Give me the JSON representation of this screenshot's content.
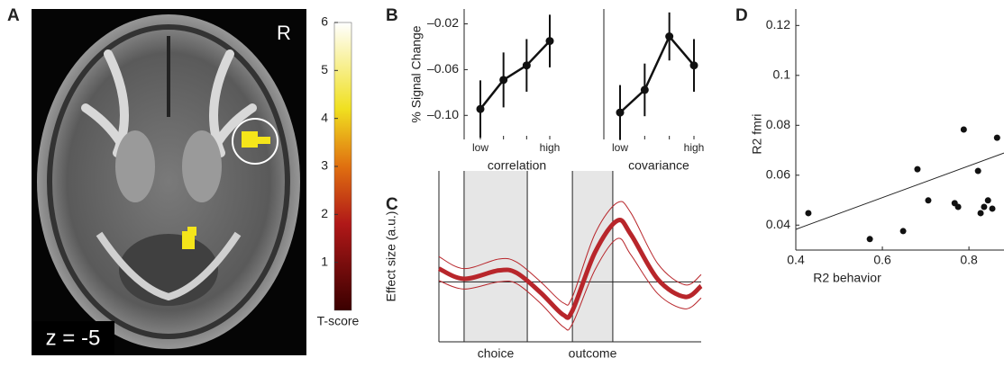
{
  "panel_labels": [
    "A",
    "B",
    "C",
    "D"
  ],
  "brain": {
    "orientation": "R",
    "slice": "z = -5",
    "colorbar": {
      "ylim": [
        0,
        6
      ],
      "yticks": [
        1,
        2,
        3,
        4,
        5,
        6
      ],
      "label": "T-score"
    }
  },
  "chart_data": [
    {
      "type": "errorline",
      "ylabel": "% Signal Change",
      "xlabel": "correlation",
      "categories": [
        "low",
        null,
        null,
        "high"
      ],
      "values": [
        -0.0944,
        -0.069,
        -0.0563,
        -0.035
      ],
      "errors": [
        0.025,
        0.024,
        0.023,
        0.023
      ],
      "ylim": [
        -0.121,
        -0.007
      ],
      "yticks": [
        {
          "value": -0.02,
          "label": "–0.02"
        },
        {
          "value": -0.06,
          "label": "–0.06"
        },
        {
          "value": -0.1,
          "label": "–0.10"
        }
      ],
      "color": "#111111"
    },
    {
      "type": "errorline",
      "xlabel": "covariance",
      "categories": [
        "low",
        null,
        null,
        "high"
      ],
      "values": [
        -0.0975,
        -0.0777,
        -0.031,
        -0.0563
      ],
      "errors": [
        0.024,
        0.023,
        0.021,
        0.023
      ],
      "ylim": [
        -0.121,
        -0.007
      ],
      "color": "#111111"
    },
    {
      "type": "band",
      "ylabel": "Effect size (a.u.)",
      "x": [
        0,
        0.96,
        2.28,
        2.96,
        3.88,
        4.74,
        5.09,
        5.95,
        6.8,
        7.32,
        8.35,
        9.38,
        10
      ],
      "values": [
        0.22,
        0.05,
        0.19,
        0.15,
        -0.18,
        -0.55,
        -0.48,
        0.49,
        1.02,
        0.79,
        0.04,
        -0.25,
        -0.07
      ],
      "upper": [
        0.42,
        0.22,
        0.38,
        0.33,
        0.0,
        -0.35,
        -0.25,
        0.8,
        1.32,
        1.15,
        0.3,
        -0.05,
        0.12
      ],
      "lower": [
        0.02,
        -0.12,
        0.0,
        -0.03,
        -0.36,
        -0.75,
        -0.7,
        0.2,
        0.72,
        0.45,
        -0.2,
        -0.45,
        -0.27
      ],
      "baseline": 0,
      "regions": [
        {
          "label": "choice",
          "start": 0.96,
          "end": 3.37
        },
        {
          "label": "outcome",
          "start": 5.09,
          "end": 6.63
        }
      ],
      "xlim": [
        0,
        10
      ],
      "ylim": [
        -1,
        1.85
      ],
      "color": "#b8262b"
    },
    {
      "type": "scatter",
      "xlabel": "R2 behavior",
      "ylabel": "R2 fmri",
      "x": [
        0.429,
        0.571,
        0.648,
        0.681,
        0.706,
        0.767,
        0.775,
        0.788,
        0.821,
        0.827,
        0.835,
        0.844,
        0.854,
        0.865
      ],
      "values": [
        0.0448,
        0.0344,
        0.0376,
        0.0624,
        0.0499,
        0.0488,
        0.0473,
        0.0783,
        0.0617,
        0.0448,
        0.0473,
        0.0499,
        0.0466,
        0.075
      ],
      "fit": {
        "x": [
          0.4,
          0.881
        ],
        "y": [
          0.0383,
          0.0689
        ]
      },
      "xlim": [
        0.4,
        0.881
      ],
      "ylim": [
        0.03,
        0.123
      ],
      "xticks": [
        0.4,
        0.6,
        0.8
      ],
      "yticks": [
        0.12,
        0.1,
        0.08,
        0.06,
        0.04
      ],
      "color": "#111111"
    }
  ]
}
